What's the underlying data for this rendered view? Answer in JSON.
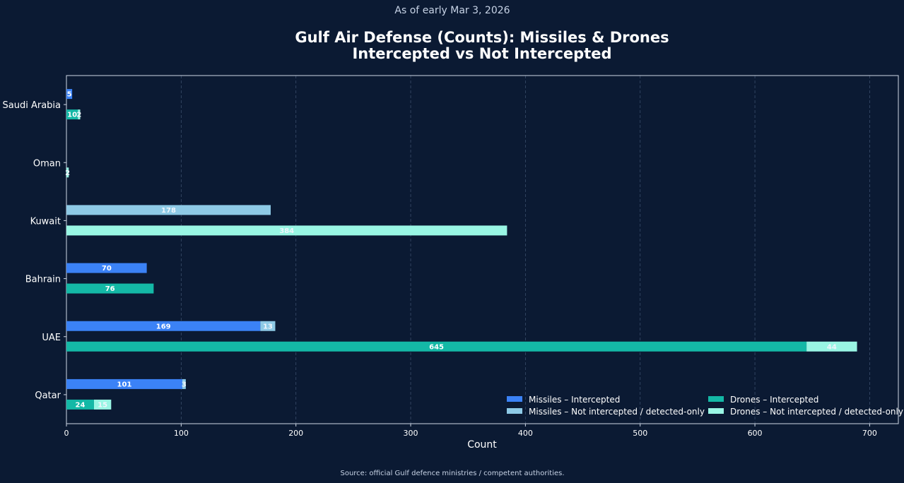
{
  "header": {
    "subtitle": "As of early Mar 3, 2026",
    "title_line1": "Gulf Air Defense (Counts): Missiles & Drones",
    "title_line2": "Intercepted vs Not Intercepted"
  },
  "footer": {
    "source": "Source: official Gulf defence ministries / competent authorities."
  },
  "colors": {
    "missiles_intercepted": "#3b82f6",
    "missiles_not": "#8ecae6",
    "drones_intercepted": "#14b8a6",
    "drones_not": "#99f6e4",
    "background": "#0b1a33"
  },
  "chart_data": {
    "type": "bar",
    "orientation": "horizontal",
    "stacked": true,
    "title": "Gulf Air Defense (Counts): Missiles & Drones Intercepted vs Not Intercepted",
    "xlabel": "Count",
    "ylabel": "",
    "xlim": [
      0,
      725
    ],
    "xticks": [
      0,
      100,
      200,
      300,
      400,
      500,
      600,
      700
    ],
    "grid": "vertical dashed",
    "legend_position": "bottom-right",
    "categories": [
      "Saudi Arabia",
      "Oman",
      "Kuwait",
      "Bahrain",
      "UAE",
      "Qatar"
    ],
    "series": [
      {
        "name": "Missiles – Intercepted",
        "group": "missiles",
        "values": [
          5,
          0,
          0,
          70,
          169,
          101
        ]
      },
      {
        "name": "Missiles – Not intercepted / detected-only",
        "group": "missiles",
        "values": [
          0,
          0,
          178,
          0,
          13,
          3
        ]
      },
      {
        "name": "Drones – Intercepted",
        "group": "drones",
        "values": [
          10,
          0,
          0,
          76,
          645,
          24
        ]
      },
      {
        "name": "Drones – Not intercepted / detected-only",
        "group": "drones",
        "values": [
          2,
          2,
          384,
          0,
          44,
          15
        ]
      }
    ]
  }
}
